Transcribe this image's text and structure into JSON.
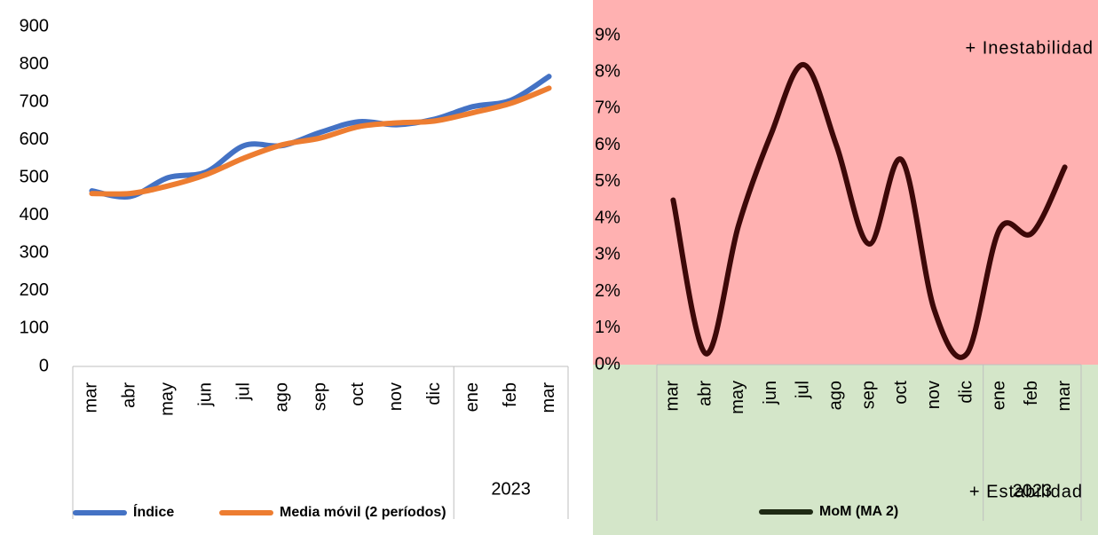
{
  "chart_data": [
    {
      "type": "line",
      "categories": [
        "mar",
        "abr",
        "may",
        "jun",
        "jul",
        "ago",
        "sep",
        "oct",
        "nov",
        "dic",
        "ene",
        "feb",
        "mar"
      ],
      "year_labels": [
        null,
        null,
        null,
        null,
        null,
        null,
        null,
        null,
        null,
        null,
        "2023",
        null,
        null
      ],
      "series": [
        {
          "name": "Índice",
          "color": "#4472c4",
          "values": [
            465,
            450,
            500,
            515,
            585,
            585,
            620,
            648,
            640,
            655,
            688,
            705,
            768
          ]
        },
        {
          "name": "Media móvil (2 períodos)",
          "color": "#ed7d31",
          "values": [
            458,
            458,
            478,
            508,
            552,
            587,
            605,
            635,
            645,
            650,
            672,
            697,
            737
          ]
        }
      ],
      "ylim": [
        0,
        900
      ],
      "yticks": [
        0,
        100,
        200,
        300,
        400,
        500,
        600,
        700,
        800,
        900
      ],
      "grid": false
    },
    {
      "type": "line",
      "categories": [
        "mar",
        "abr",
        "may",
        "jun",
        "jul",
        "ago",
        "sep",
        "oct",
        "nov",
        "dic",
        "ene",
        "feb",
        "mar"
      ],
      "year_labels": [
        null,
        null,
        null,
        null,
        null,
        null,
        null,
        null,
        null,
        null,
        "2023",
        null,
        null
      ],
      "series": [
        {
          "name": "MoM (MA 2)",
          "color": "#3d0808",
          "legend_color": "#1e2a14",
          "values": [
            4.5,
            0.3,
            3.8,
            6.3,
            8.2,
            6.0,
            3.3,
            5.6,
            1.5,
            0.3,
            3.7,
            3.6,
            5.4
          ]
        }
      ],
      "ylim": [
        0,
        9
      ],
      "yticks": [
        {
          "value": 0,
          "label": "0%"
        },
        {
          "value": 1,
          "label": "1%"
        },
        {
          "value": 2,
          "label": "2%"
        },
        {
          "value": 3,
          "label": "3%"
        },
        {
          "value": 4,
          "label": "4%"
        },
        {
          "value": 5,
          "label": "5%"
        },
        {
          "value": 6,
          "label": "6%"
        },
        {
          "value": 7,
          "label": "7%"
        },
        {
          "value": 8,
          "label": "8%"
        },
        {
          "value": 9,
          "label": "9%"
        }
      ],
      "zone_colors": [
        "#ffb1b1",
        "#d4e6c9"
      ],
      "text_color": "#6b0a0a",
      "annotations": [
        "+ Inestabilidad",
        "+ Estabilidad"
      ],
      "grid": false
    }
  ]
}
